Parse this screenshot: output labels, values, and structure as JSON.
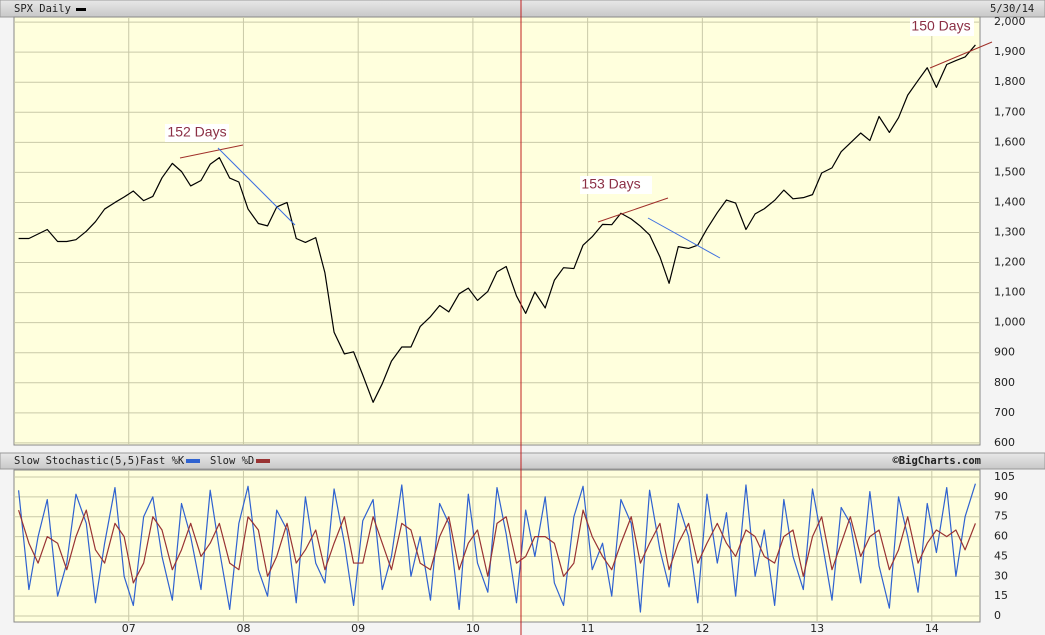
{
  "chart_data": [
    {
      "type": "line",
      "series": [
        {
          "name": "SPX Daily",
          "color": "#000000",
          "values": [
            1280,
            1280,
            1295,
            1310,
            1270,
            1270,
            1276,
            1304,
            1336,
            1378,
            1400,
            1418,
            1438,
            1406,
            1420,
            1482,
            1530,
            1503,
            1455,
            1473,
            1527,
            1549,
            1481,
            1468,
            1378,
            1330,
            1322,
            1385,
            1400,
            1280,
            1267,
            1283,
            1166,
            968,
            896,
            903,
            826,
            735,
            797,
            872,
            919,
            919,
            987,
            1020,
            1057,
            1036,
            1096,
            1115,
            1074,
            1104,
            1169,
            1187,
            1089,
            1031,
            1102,
            1049,
            1141,
            1183,
            1180,
            1258,
            1286,
            1327,
            1326,
            1364,
            1345,
            1321,
            1292,
            1219,
            1131,
            1253,
            1247,
            1258,
            1312,
            1366,
            1408,
            1398,
            1310,
            1362,
            1379,
            1407,
            1441,
            1412,
            1416,
            1426,
            1498,
            1515,
            1569,
            1598,
            1631,
            1606,
            1686,
            1633,
            1682,
            1757,
            1806,
            1848,
            1783,
            1859,
            1872,
            1884,
            1924
          ]
        }
      ],
      "x": [
        2006.04,
        2006.13,
        2006.21,
        2006.29,
        2006.38,
        2006.46,
        2006.54,
        2006.63,
        2006.71,
        2006.79,
        2006.88,
        2006.96,
        2007.04,
        2007.13,
        2007.21,
        2007.29,
        2007.38,
        2007.46,
        2007.54,
        2007.63,
        2007.71,
        2007.79,
        2007.88,
        2007.96,
        2008.04,
        2008.13,
        2008.21,
        2008.29,
        2008.38,
        2008.46,
        2008.54,
        2008.63,
        2008.71,
        2008.79,
        2008.88,
        2008.96,
        2009.04,
        2009.13,
        2009.21,
        2009.29,
        2009.38,
        2009.46,
        2009.54,
        2009.63,
        2009.71,
        2009.79,
        2009.88,
        2009.96,
        2010.04,
        2010.13,
        2010.21,
        2010.29,
        2010.38,
        2010.46,
        2010.54,
        2010.63,
        2010.71,
        2010.79,
        2010.88,
        2010.96,
        2011.04,
        2011.13,
        2011.21,
        2011.29,
        2011.38,
        2011.46,
        2011.54,
        2011.63,
        2011.71,
        2011.79,
        2011.88,
        2011.96,
        2012.04,
        2012.13,
        2012.21,
        2012.29,
        2012.38,
        2012.46,
        2012.54,
        2012.63,
        2012.71,
        2012.79,
        2012.88,
        2012.96,
        2013.04,
        2013.13,
        2013.21,
        2013.29,
        2013.38,
        2013.46,
        2013.54,
        2013.63,
        2013.71,
        2013.79,
        2013.88,
        2013.96,
        2014.04,
        2014.13,
        2014.21,
        2014.29,
        2014.38
      ],
      "date_label": "5/30/14",
      "annotations": [
        "152 Days",
        "153 Days",
        "150 Days"
      ],
      "xlim": [
        2006.0,
        2014.42
      ],
      "xticks": [
        2007,
        2008,
        2009,
        2010,
        2011,
        2012,
        2013,
        2014
      ],
      "ylim": [
        593,
        2017
      ],
      "yticks": [
        600,
        700,
        800,
        900,
        {
          "value": 1000,
          "label": "1,000"
        },
        {
          "value": 1100,
          "label": "1,100"
        },
        {
          "value": 1200,
          "label": "1,200"
        },
        {
          "value": 1300,
          "label": "1,300"
        },
        {
          "value": 1400,
          "label": "1,400"
        },
        {
          "value": 1500,
          "label": "1,500"
        },
        {
          "value": 1600,
          "label": "1,600"
        },
        {
          "value": 1700,
          "label": "1,700"
        },
        {
          "value": 1800,
          "label": "1,800"
        },
        {
          "value": 1900,
          "label": "1,900"
        },
        {
          "value": 2000,
          "label": "2,000"
        }
      ],
      "grid": true
    },
    {
      "type": "line",
      "title": "Slow Stochastic(5,5)",
      "source": "©BigCharts.com",
      "series": [
        {
          "name": "Fast %K",
          "color": "#2f62d0",
          "values": [
            95,
            20,
            60,
            88,
            15,
            40,
            92,
            70,
            10,
            55,
            97,
            30,
            8,
            75,
            90,
            45,
            12,
            85,
            60,
            20,
            95,
            50,
            5,
            70,
            98,
            35,
            15,
            80,
            65,
            10,
            90,
            40,
            25,
            96,
            55,
            8,
            72,
            88,
            20,
            45,
            99,
            30,
            60,
            12,
            85,
            70,
            5,
            92,
            40,
            18,
            97,
            62,
            10,
            80,
            45,
            90,
            25,
            8,
            75,
            98,
            35,
            55,
            15,
            88,
            70,
            3,
            95,
            50,
            22,
            85,
            60,
            10,
            92,
            40,
            78,
            15,
            99,
            30,
            65,
            8,
            88,
            45,
            20,
            96,
            58,
            12,
            82,
            70,
            25,
            94,
            38,
            6,
            90,
            60,
            18,
            85,
            48,
            97,
            30,
            75,
            100
          ]
        },
        {
          "name": "Slow %D",
          "color": "#993333",
          "values": [
            80,
            55,
            40,
            60,
            55,
            35,
            60,
            80,
            50,
            40,
            70,
            60,
            25,
            40,
            75,
            65,
            35,
            50,
            70,
            45,
            55,
            70,
            40,
            35,
            75,
            65,
            30,
            45,
            70,
            40,
            50,
            65,
            35,
            55,
            75,
            40,
            40,
            75,
            55,
            35,
            70,
            65,
            40,
            35,
            60,
            75,
            35,
            55,
            65,
            30,
            70,
            75,
            40,
            45,
            60,
            60,
            55,
            30,
            40,
            80,
            60,
            45,
            35,
            55,
            75,
            40,
            55,
            70,
            35,
            55,
            70,
            40,
            55,
            70,
            55,
            45,
            65,
            60,
            45,
            40,
            60,
            65,
            30,
            60,
            75,
            35,
            55,
            75,
            45,
            60,
            65,
            35,
            50,
            75,
            40,
            55,
            65,
            60,
            65,
            50,
            70
          ]
        }
      ],
      "x": [
        2006.04,
        2006.13,
        2006.21,
        2006.29,
        2006.38,
        2006.46,
        2006.54,
        2006.63,
        2006.71,
        2006.79,
        2006.88,
        2006.96,
        2007.04,
        2007.13,
        2007.21,
        2007.29,
        2007.38,
        2007.46,
        2007.54,
        2007.63,
        2007.71,
        2007.79,
        2007.88,
        2007.96,
        2008.04,
        2008.13,
        2008.21,
        2008.29,
        2008.38,
        2008.46,
        2008.54,
        2008.63,
        2008.71,
        2008.79,
        2008.88,
        2008.96,
        2009.04,
        2009.13,
        2009.21,
        2009.29,
        2009.38,
        2009.46,
        2009.54,
        2009.63,
        2009.71,
        2009.79,
        2009.88,
        2009.96,
        2010.04,
        2010.13,
        2010.21,
        2010.29,
        2010.38,
        2010.46,
        2010.54,
        2010.63,
        2010.71,
        2010.79,
        2010.88,
        2010.96,
        2011.04,
        2011.13,
        2011.21,
        2011.29,
        2011.38,
        2011.46,
        2011.54,
        2011.63,
        2011.71,
        2011.79,
        2011.88,
        2011.96,
        2012.04,
        2012.13,
        2012.21,
        2012.29,
        2012.38,
        2012.46,
        2012.54,
        2012.63,
        2012.71,
        2012.79,
        2012.88,
        2012.96,
        2013.04,
        2013.13,
        2013.21,
        2013.29,
        2013.38,
        2013.46,
        2013.54,
        2013.63,
        2013.71,
        2013.79,
        2013.88,
        2013.96,
        2014.04,
        2014.13,
        2014.21,
        2014.29,
        2014.38
      ],
      "xlim": [
        2006.0,
        2014.42
      ],
      "xticks": [
        {
          "value": 2007,
          "label": "07"
        },
        {
          "value": 2008,
          "label": "08"
        },
        {
          "value": 2009,
          "label": "09"
        },
        {
          "value": 2010,
          "label": "10"
        },
        {
          "value": 2011,
          "label": "11"
        },
        {
          "value": 2012,
          "label": "12"
        },
        {
          "value": 2013,
          "label": "13"
        },
        {
          "value": 2014,
          "label": "14"
        }
      ],
      "ylim": [
        -4.5,
        110.3
      ],
      "yticks": [
        0,
        15,
        30,
        45,
        60,
        75,
        90,
        105
      ],
      "grid": true
    }
  ]
}
